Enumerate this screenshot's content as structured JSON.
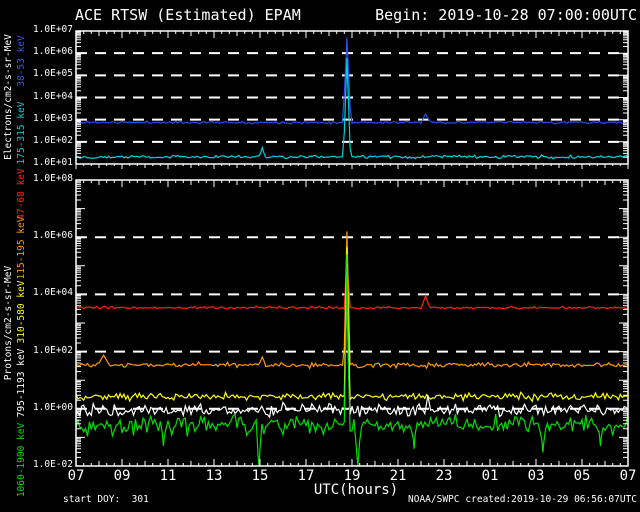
{
  "header": {
    "title": "ACE RTSW (Estimated) EPAM",
    "begin": "Begin: 2019-10-28 07:00:00UTC"
  },
  "footer": {
    "start_doy": "start DOY:  301",
    "credit": "NOAA/SWPC",
    "created": "created:2019-10-29 06:56:07UTC"
  },
  "x_axis": {
    "label": "UTC(hours)",
    "tick_labels": [
      "07",
      "09",
      "11",
      "13",
      "15",
      "17",
      "19",
      "21",
      "23",
      "01",
      "03",
      "05",
      "07"
    ]
  },
  "panels": [
    {
      "id": "electrons",
      "ylabel": "Electrons/cm2-s-sr-MeV",
      "log_min": 1,
      "log_max": 7,
      "label_step": 1,
      "tick_labels": [
        "1.0E+07",
        "1.0E+06",
        "1.0E+05",
        "1.0E+04",
        "1.0E+03",
        "1.0E+02",
        "1.0E+01"
      ],
      "gridline_decades": [
        6,
        5,
        4,
        3,
        2
      ],
      "legend": [
        {
          "text": "38-53 keV",
          "color": "#3a56f0"
        },
        {
          "text": "175-315 keV",
          "color": "#00d2dc"
        }
      ]
    },
    {
      "id": "protons",
      "ylabel": "Protons/cm2-s-sr-MeV",
      "log_min": -2,
      "log_max": 8,
      "label_step": 2,
      "tick_labels": [
        "1.0E+08",
        "1.0E+06",
        "1.0E+04",
        "1.0E+02",
        "1.0E+00",
        "1.0E-02"
      ],
      "gridline_decades": [
        6,
        4,
        2,
        0
      ],
      "legend": [
        {
          "text": "47-68 keV",
          "color": "#ff2400"
        },
        {
          "text": "115-195 keV",
          "color": "#ff9800"
        },
        {
          "text": "310-580 keV",
          "color": "#ffff00"
        },
        {
          "text": "795-1193 keV",
          "color": "#ffffff"
        },
        {
          "text": "1060-1900 keV",
          "color": "#00e000"
        }
      ]
    }
  ],
  "chart_data": {
    "type": "line",
    "title": "ACE RTSW (Estimated) EPAM",
    "begin_utc": "2019-10-28 07:00:00UTC",
    "x_start_hour": 7,
    "x_end_hour": 31,
    "cadence_minutes": 5,
    "xlabel": "UTC(hours)",
    "grid": "dashed-white-per-decade",
    "series": [
      {
        "name": "38-53 keV",
        "panel": "electrons",
        "color": "#2a4df0",
        "baseline": 750,
        "noise_dex": 0.035,
        "seed": 11,
        "events": [
          {
            "type": "spike",
            "center": 18.78,
            "half_width": 0.17,
            "peak": 5000000
          },
          {
            "type": "spike",
            "center": 22.2,
            "half_width": 0.2,
            "peak": 1800
          }
        ]
      },
      {
        "name": "175-315 keV",
        "panel": "electrons",
        "color": "#00d2dc",
        "baseline": 21,
        "noise_dex": 0.05,
        "seed": 22,
        "events": [
          {
            "type": "spike",
            "center": 15.1,
            "half_width": 0.12,
            "peak": 55
          },
          {
            "type": "spike",
            "center": 18.78,
            "half_width": 0.15,
            "peak": 600000
          }
        ]
      },
      {
        "name": "47-68 keV",
        "panel": "protons",
        "color": "#ff2400",
        "baseline": 3400,
        "noise_dex": 0.03,
        "seed": 33,
        "events": [
          {
            "type": "spike",
            "center": 18.78,
            "half_width": 0.1,
            "peak": 350000
          },
          {
            "type": "spike",
            "center": 22.2,
            "half_width": 0.18,
            "peak": 9000
          }
        ]
      },
      {
        "name": "115-195 keV",
        "panel": "protons",
        "color": "#ff9800",
        "baseline": 34,
        "noise_dex": 0.06,
        "seed": 44,
        "events": [
          {
            "type": "spike",
            "center": 8.2,
            "half_width": 0.25,
            "peak": 75
          },
          {
            "type": "spike",
            "center": 15.1,
            "half_width": 0.15,
            "peak": 65
          },
          {
            "type": "spike",
            "center": 18.78,
            "half_width": 0.13,
            "peak": 1600000
          }
        ]
      },
      {
        "name": "310-580 keV",
        "panel": "protons",
        "color": "#ffff00",
        "baseline": 2.7,
        "noise_dex": 0.08,
        "seed": 55,
        "events": [
          {
            "type": "spike",
            "center": 18.78,
            "half_width": 0.11,
            "peak": 450000
          }
        ]
      },
      {
        "name": "795-1193 keV",
        "panel": "protons",
        "color": "#ffffff",
        "baseline": 0.92,
        "noise_dex": 0.14,
        "seed": 66,
        "events": [
          {
            "type": "spike",
            "center": 18.78,
            "half_width": 0.09,
            "peak": 120000
          },
          {
            "type": "spike",
            "center": 22.3,
            "half_width": 0.1,
            "peak": 3
          }
        ]
      },
      {
        "name": "1060-1900 keV",
        "panel": "protons",
        "color": "#00e000",
        "baseline": 0.27,
        "noise_dex": 0.22,
        "seed": 77,
        "events": [
          {
            "type": "dip",
            "center": 10.8,
            "half_width": 0.08,
            "floor": 0.05
          },
          {
            "type": "dip",
            "center": 14.95,
            "half_width": 0.1,
            "floor": 0.006
          },
          {
            "type": "spike",
            "center": 18.78,
            "half_width": 0.09,
            "peak": 250000
          },
          {
            "type": "dip",
            "center": 19.25,
            "half_width": 0.12,
            "floor": 0.004
          },
          {
            "type": "dip",
            "center": 21.7,
            "half_width": 0.08,
            "floor": 0.04
          },
          {
            "type": "dip",
            "center": 27.3,
            "half_width": 0.1,
            "floor": 0.03
          },
          {
            "type": "dip",
            "center": 29.8,
            "half_width": 0.08,
            "floor": 0.05
          }
        ]
      }
    ]
  }
}
